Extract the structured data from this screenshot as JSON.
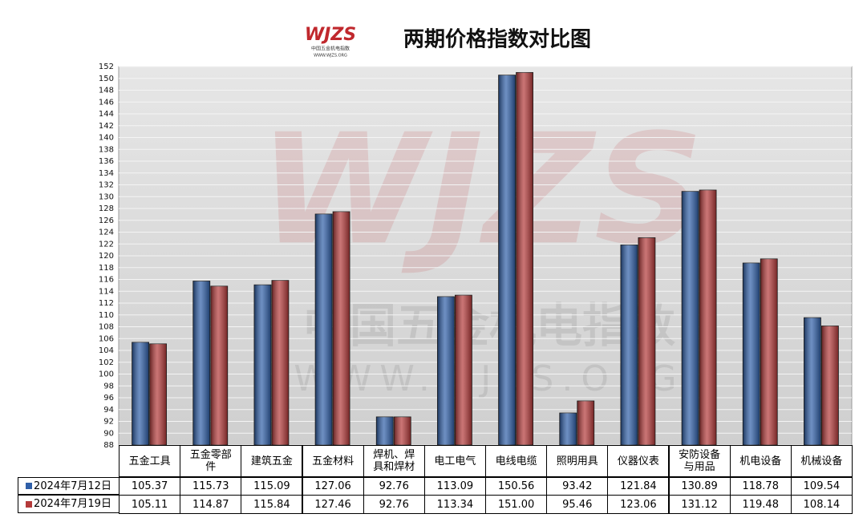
{
  "chart_data": {
    "type": "bar",
    "title": "两期价格指数对比图",
    "logo": {
      "mark": "WJZS",
      "cn": "中国五金机电指数",
      "url": "WWW.WJZS.ORG"
    },
    "categories": [
      "五金工具",
      "五金零部件",
      "建筑五金",
      "五金材料",
      "焊机、焊具和焊材",
      "电工电气",
      "电线电缆",
      "照明用具",
      "仪器仪表",
      "安防设备与用品",
      "机电设备",
      "机械设备"
    ],
    "series": [
      {
        "name": "2024年7月12日",
        "color": "#2f5fa8",
        "values": [
          105.37,
          115.73,
          115.09,
          127.06,
          92.76,
          113.09,
          150.56,
          93.42,
          121.84,
          130.89,
          118.78,
          109.54
        ],
        "value_labels": [
          "105.37",
          "115.73",
          "115.09",
          "127.06",
          "92.76",
          "113.09",
          "150.56",
          "93.42",
          "121.84",
          "130.89",
          "118.78",
          "109.54"
        ]
      },
      {
        "name": "2024年7月19日",
        "color": "#b43a3a",
        "values": [
          105.11,
          114.87,
          115.84,
          127.46,
          92.76,
          113.34,
          151.0,
          95.46,
          123.06,
          131.12,
          119.48,
          108.14
        ],
        "value_labels": [
          "105.11",
          "114.87",
          "115.84",
          "127.46",
          "92.76",
          "113.34",
          "151.00",
          "95.46",
          "123.06",
          "131.12",
          "119.48",
          "108.14"
        ]
      }
    ],
    "ylim": [
      88,
      152
    ],
    "yticks": [
      88,
      90,
      92,
      94,
      96,
      98,
      100,
      102,
      104,
      106,
      108,
      110,
      112,
      114,
      116,
      118,
      120,
      122,
      124,
      126,
      128,
      130,
      132,
      134,
      136,
      138,
      140,
      142,
      144,
      146,
      148,
      150,
      152
    ],
    "grid": true
  }
}
